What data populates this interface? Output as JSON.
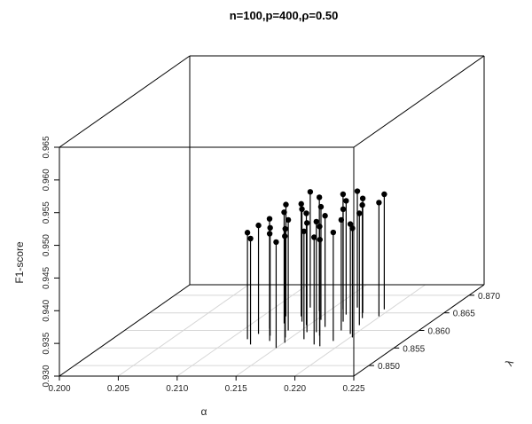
{
  "chart_data": {
    "type": "scatter3d",
    "title": "n=100,p=400,ρ=0.50",
    "xlabel": "α",
    "ylabel": "λ",
    "zlabel": "F1-score",
    "xlim": [
      0.2,
      0.225
    ],
    "ylim": [
      0.847,
      0.873
    ],
    "zlim": [
      0.93,
      0.965
    ],
    "x_ticks": [
      "0.200",
      "0.205",
      "0.210",
      "0.215",
      "0.220",
      "0.225"
    ],
    "y_ticks": [
      "0.850",
      "0.855",
      "0.860",
      "0.865",
      "0.870"
    ],
    "z_ticks": [
      "0.930",
      "0.935",
      "0.940",
      "0.945",
      "0.950",
      "0.955",
      "0.960",
      "0.965"
    ],
    "grid": true,
    "points": [
      {
        "x": 0.2115,
        "y": 0.8575,
        "z": 0.9463
      },
      {
        "x": 0.2118,
        "y": 0.859,
        "z": 0.9466
      },
      {
        "x": 0.2121,
        "y": 0.8605,
        "z": 0.9468
      },
      {
        "x": 0.2124,
        "y": 0.856,
        "z": 0.9462
      },
      {
        "x": 0.2127,
        "y": 0.862,
        "z": 0.947
      },
      {
        "x": 0.213,
        "y": 0.8585,
        "z": 0.9465
      },
      {
        "x": 0.2133,
        "y": 0.864,
        "z": 0.9472
      },
      {
        "x": 0.2136,
        "y": 0.857,
        "z": 0.9464
      },
      {
        "x": 0.2139,
        "y": 0.86,
        "z": 0.9469
      },
      {
        "x": 0.2142,
        "y": 0.8655,
        "z": 0.9474
      },
      {
        "x": 0.2145,
        "y": 0.858,
        "z": 0.9466
      },
      {
        "x": 0.2148,
        "y": 0.8615,
        "z": 0.9471
      },
      {
        "x": 0.2151,
        "y": 0.8565,
        "z": 0.9463
      },
      {
        "x": 0.2154,
        "y": 0.863,
        "z": 0.9473
      },
      {
        "x": 0.2157,
        "y": 0.8595,
        "z": 0.9467
      },
      {
        "x": 0.216,
        "y": 0.866,
        "z": 0.9476
      },
      {
        "x": 0.2163,
        "y": 0.8575,
        "z": 0.9465
      },
      {
        "x": 0.2166,
        "y": 0.861,
        "z": 0.947
      },
      {
        "x": 0.2169,
        "y": 0.8645,
        "z": 0.9474
      },
      {
        "x": 0.2172,
        "y": 0.8585,
        "z": 0.9467
      },
      {
        "x": 0.2175,
        "y": 0.8625,
        "z": 0.9472
      },
      {
        "x": 0.2178,
        "y": 0.856,
        "z": 0.9464
      },
      {
        "x": 0.2181,
        "y": 0.865,
        "z": 0.9475
      },
      {
        "x": 0.2184,
        "y": 0.86,
        "z": 0.9469
      },
      {
        "x": 0.2187,
        "y": 0.8635,
        "z": 0.9473
      },
      {
        "x": 0.219,
        "y": 0.857,
        "z": 0.9466
      },
      {
        "x": 0.2193,
        "y": 0.8615,
        "z": 0.9471
      },
      {
        "x": 0.2196,
        "y": 0.859,
        "z": 0.9468
      },
      {
        "x": 0.2199,
        "y": 0.864,
        "z": 0.9474
      },
      {
        "x": 0.2202,
        "y": 0.858,
        "z": 0.9467
      },
      {
        "x": 0.213,
        "y": 0.8665,
        "z": 0.9477
      },
      {
        "x": 0.215,
        "y": 0.855,
        "z": 0.9462
      },
      {
        "x": 0.217,
        "y": 0.8665,
        "z": 0.9478
      },
      {
        "x": 0.2185,
        "y": 0.8555,
        "z": 0.9463
      },
      {
        "x": 0.212,
        "y": 0.864,
        "z": 0.9471
      },
      {
        "x": 0.2165,
        "y": 0.8595,
        "z": 0.9469
      },
      {
        "x": 0.214,
        "y": 0.8625,
        "z": 0.9472
      },
      {
        "x": 0.2195,
        "y": 0.866,
        "z": 0.9476
      }
    ]
  }
}
